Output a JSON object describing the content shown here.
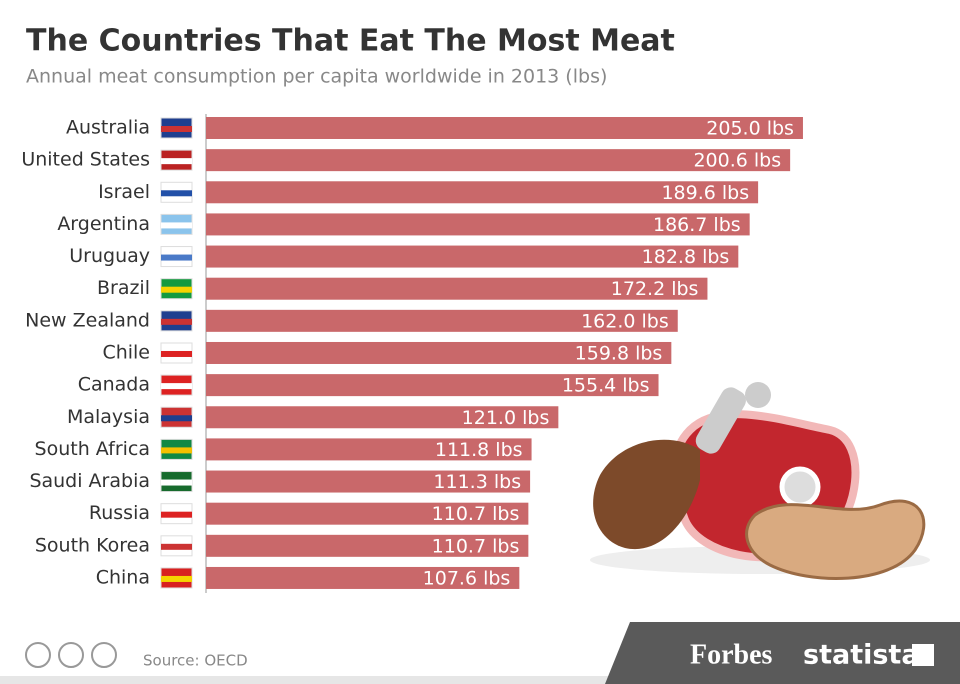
{
  "chart_data": {
    "type": "barh",
    "title": "The Countries That Eat The Most Meat",
    "subtitle": "Annual meat consumption per capita worldwide in 2013 (lbs)",
    "categories": [
      "Australia",
      "United States",
      "Israel",
      "Argentina",
      "Uruguay",
      "Brazil",
      "New Zealand",
      "Chile",
      "Canada",
      "Malaysia",
      "South Africa",
      "Saudi Arabia",
      "Russia",
      "South Korea",
      "China"
    ],
    "values": [
      205.0,
      200.6,
      189.6,
      186.7,
      182.8,
      172.2,
      162.0,
      159.8,
      155.4,
      121.0,
      111.8,
      111.3,
      110.7,
      110.7,
      107.6
    ],
    "value_labels": [
      "205.0 lbs",
      "200.6 lbs",
      "189.6 lbs",
      "186.7 lbs",
      "182.8 lbs",
      "172.2 lbs",
      "162.0 lbs",
      "159.8 lbs",
      "155.4 lbs",
      "121.0 lbs",
      "111.8 lbs",
      "111.3 lbs",
      "110.7 lbs",
      "110.7 lbs",
      "107.6 lbs"
    ],
    "color": "#c9686a",
    "source": "Source: OECD",
    "brands": [
      "Forbes",
      "statista"
    ]
  }
}
